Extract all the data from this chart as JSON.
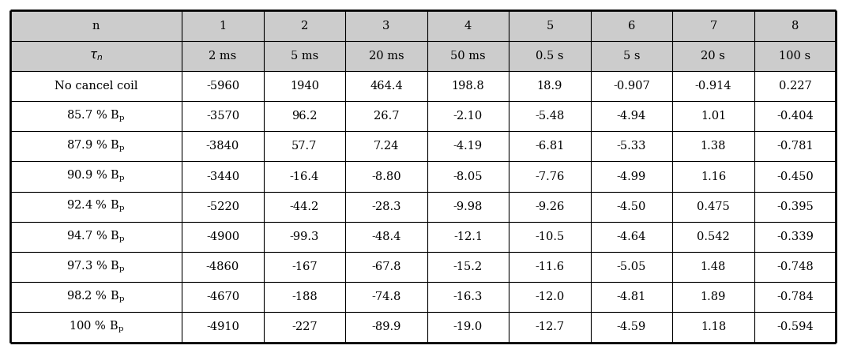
{
  "col_headers": [
    "n",
    "1",
    "2",
    "3",
    "4",
    "5",
    "6",
    "7",
    "8"
  ],
  "tau_row_label": "τ_n",
  "tau_row": [
    "2 ms",
    "5 ms",
    "20 ms",
    "50 ms",
    "0.5 s",
    "5 s",
    "20 s",
    "100 s"
  ],
  "rows": [
    [
      "No cancel coil",
      "-5960",
      "1940",
      "464.4",
      "198.8",
      "18.9",
      "-0.907",
      "-0.914",
      "0.227"
    ],
    [
      "85.7 % B_p",
      "-3570",
      "96.2",
      "26.7",
      "-2.10",
      "-5.48",
      "-4.94",
      "1.01",
      "-0.404"
    ],
    [
      "87.9 % B_p",
      "-3840",
      "57.7",
      "7.24",
      "-4.19",
      "-6.81",
      "-5.33",
      "1.38",
      "-0.781"
    ],
    [
      "90.9 % B_p",
      "-3440",
      "-16.4",
      "-8.80",
      "-8.05",
      "-7.76",
      "-4.99",
      "1.16",
      "-0.450"
    ],
    [
      "92.4 % B_p",
      "-5220",
      "-44.2",
      "-28.3",
      "-9.98",
      "-9.26",
      "-4.50",
      "0.475",
      "-0.395"
    ],
    [
      "94.7 % B_p",
      "-4900",
      "-99.3",
      "-48.4",
      "-12.1",
      "-10.5",
      "-4.64",
      "0.542",
      "-0.339"
    ],
    [
      "97.3 % B_p",
      "-4860",
      "-167",
      "-67.8",
      "-15.2",
      "-11.6",
      "-5.05",
      "1.48",
      "-0.748"
    ],
    [
      "98.2 % B_p",
      "-4670",
      "-188",
      "-74.8",
      "-16.3",
      "-12.0",
      "-4.81",
      "1.89",
      "-0.784"
    ],
    [
      "100 % B_p",
      "-4910",
      "-227",
      "-89.9",
      "-19.0",
      "-12.7",
      "-4.59",
      "1.18",
      "-0.594"
    ]
  ],
  "header_bg": "#cccccc",
  "tau_bg": "#cccccc",
  "white_bg": "#ffffff",
  "line_color": "#000000",
  "text_color": "#000000",
  "figsize": [
    10.71,
    4.47
  ],
  "dpi": 100,
  "col_widths_rel": [
    2.1,
    1.0,
    1.0,
    1.0,
    1.0,
    1.0,
    1.0,
    1.0,
    1.0
  ],
  "fontsize": 10.5
}
